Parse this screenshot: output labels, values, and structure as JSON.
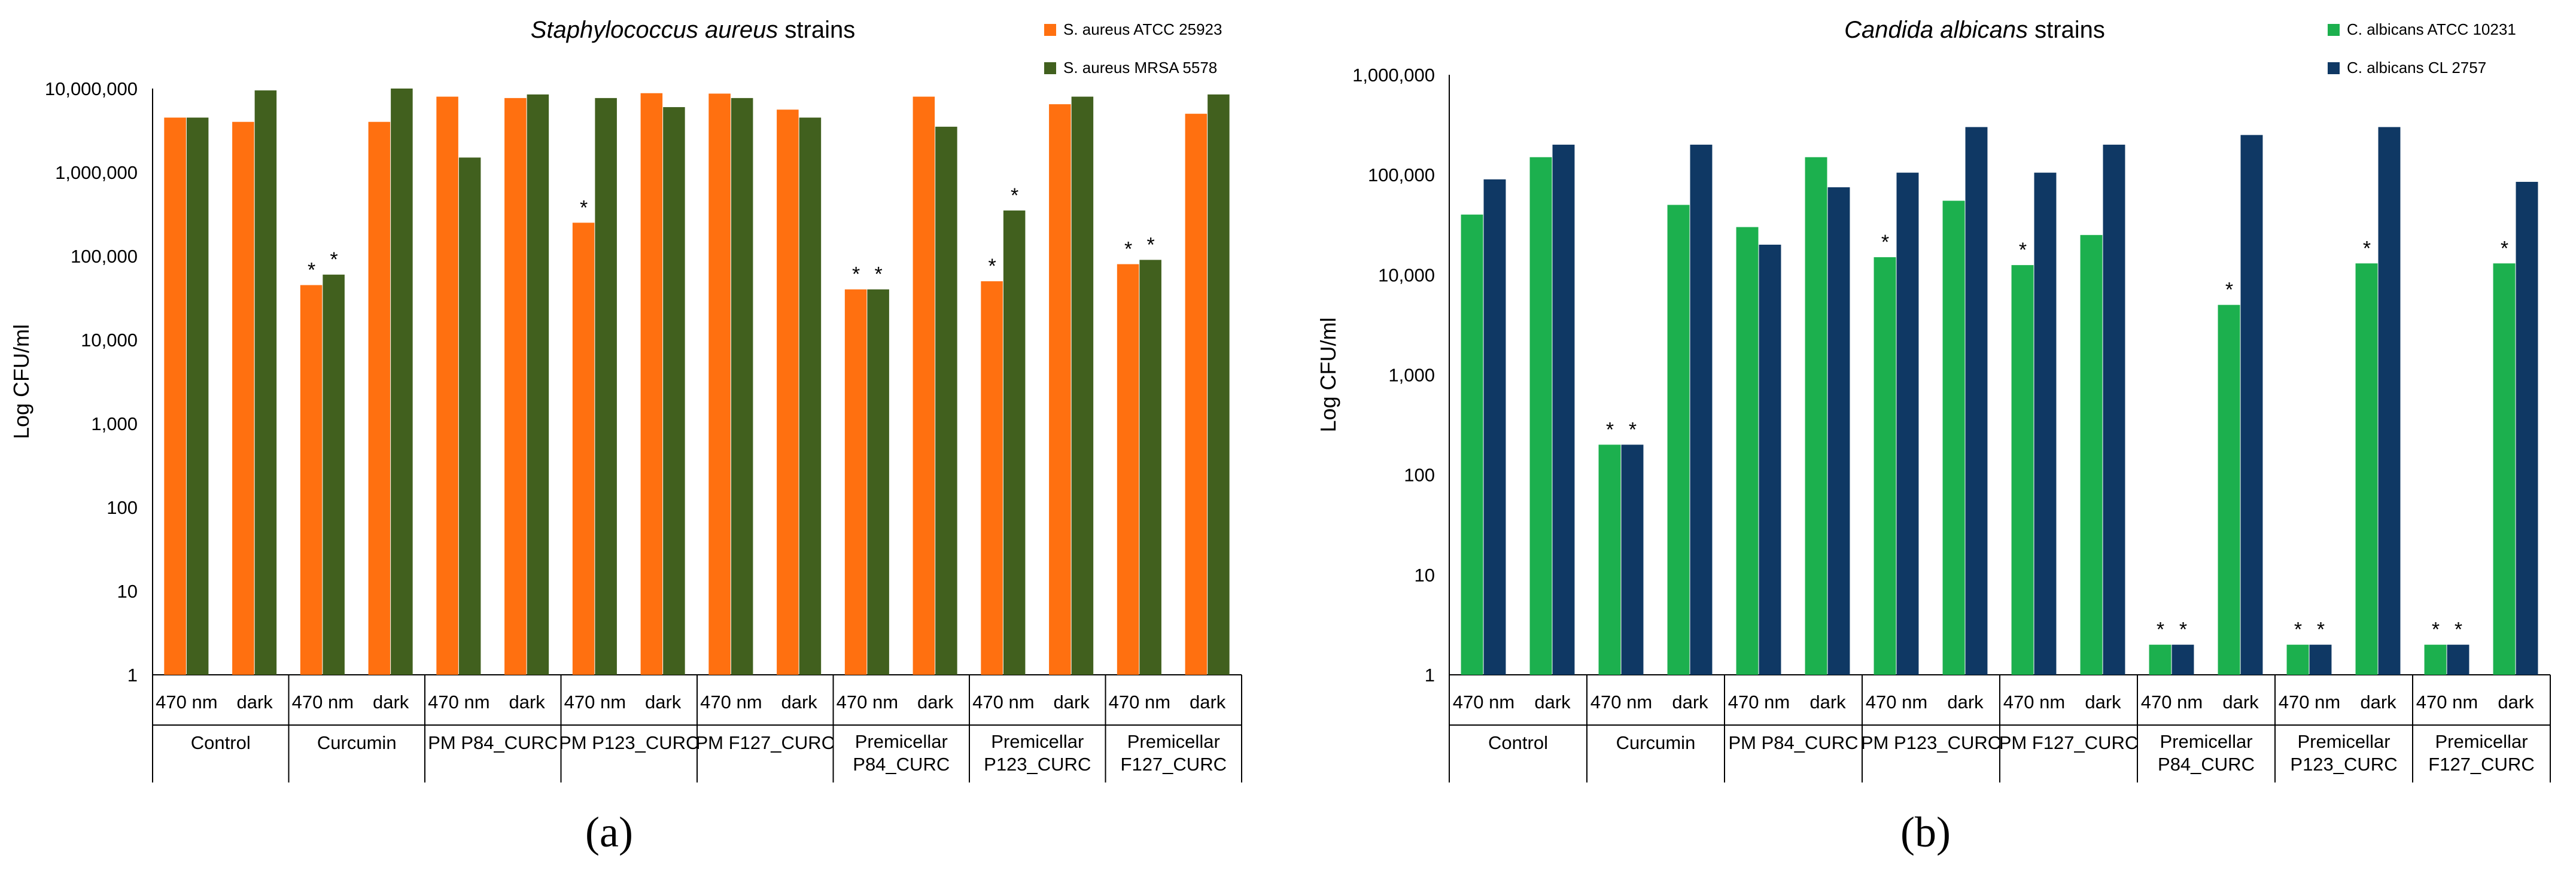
{
  "colors": {
    "a_s1": "#FF7010",
    "a_s2": "#41601E",
    "b_s1": "#1CB04E",
    "b_s2": "#0F3864"
  },
  "panel_labels": [
    "(a)",
    "(b)"
  ],
  "chart_data": [
    {
      "type": "bar",
      "scale": "log10",
      "title_italic": "Staphylococcus aureus",
      "title_rest": " strains",
      "ylabel": "Log CFU/ml",
      "xlabel": "",
      "ylim": [
        1,
        10000000
      ],
      "yticks": [
        1,
        10,
        100,
        1000,
        10000,
        100000,
        1000000,
        10000000
      ],
      "ytick_labels": [
        "1",
        "10",
        "100",
        "1,000",
        "10,000",
        "100,000",
        "1,000,000",
        "10,000,000"
      ],
      "groups": [
        [
          "Control"
        ],
        [
          "Curcumin"
        ],
        [
          "PM P84_CURC"
        ],
        [
          "PM P123_CURC"
        ],
        [
          "PM F127_CURC"
        ],
        [
          "Premicellar",
          "P84_CURC"
        ],
        [
          "Premicellar",
          "P123_CURC"
        ],
        [
          "Premicellar",
          "F127_CURC"
        ]
      ],
      "subcategories": [
        "470 nm",
        "dark"
      ],
      "series": [
        {
          "name": "S. aureus ATCC 25923",
          "values": [
            4500000,
            4000000,
            45000,
            4000000,
            8000000,
            7700000,
            250000,
            8800000,
            8700000,
            5600000,
            40000,
            8000000,
            50000,
            6500000,
            80000,
            5000000
          ],
          "significant": [
            false,
            false,
            true,
            false,
            false,
            false,
            true,
            false,
            false,
            false,
            true,
            false,
            true,
            false,
            true,
            false
          ]
        },
        {
          "name": "S. aureus MRSA 5578",
          "values": [
            4500000,
            9500000,
            60000,
            10000000,
            1500000,
            8500000,
            7700000,
            6000000,
            7700000,
            4500000,
            40000,
            3500000,
            350000,
            8000000,
            90000,
            8500000
          ],
          "significant": [
            false,
            false,
            true,
            false,
            false,
            false,
            false,
            false,
            false,
            false,
            true,
            false,
            true,
            false,
            true,
            false
          ]
        }
      ],
      "significance_mark": "*",
      "legend_position": "top-right"
    },
    {
      "type": "bar",
      "scale": "log10",
      "title_italic": "Candida albicans",
      "title_rest": " strains",
      "ylabel": "Log CFU/ml",
      "xlabel": "",
      "ylim": [
        1,
        1000000
      ],
      "yticks": [
        1,
        10,
        100,
        1000,
        10000,
        100000,
        1000000
      ],
      "ytick_labels": [
        "1",
        "10",
        "100",
        "1,000",
        "10,000",
        "100,000",
        "1,000,000"
      ],
      "groups": [
        [
          "Control"
        ],
        [
          "Curcumin"
        ],
        [
          "PM P84_CURC"
        ],
        [
          "PM P123_CURC"
        ],
        [
          "PM F127_CURC"
        ],
        [
          "Premicellar",
          "P84_CURC"
        ],
        [
          "Premicellar",
          "P123_CURC"
        ],
        [
          "Premicellar",
          "F127_CURC"
        ]
      ],
      "subcategories": [
        "470 nm",
        "dark"
      ],
      "series": [
        {
          "name": "C. albicans ATCC 10231",
          "values": [
            40000,
            150000,
            200,
            50000,
            30000,
            150000,
            15000,
            55000,
            12500,
            25000,
            2,
            5000,
            2,
            13000,
            2,
            13000
          ],
          "significant": [
            false,
            false,
            true,
            false,
            false,
            false,
            true,
            false,
            true,
            false,
            true,
            true,
            true,
            true,
            true,
            true
          ]
        },
        {
          "name": "C. albicans CL 2757",
          "values": [
            90000,
            200000,
            200,
            200000,
            20000,
            75000,
            105000,
            300000,
            105000,
            200000,
            2,
            250000,
            2,
            300000,
            2,
            85000
          ],
          "significant": [
            false,
            false,
            true,
            false,
            false,
            false,
            false,
            false,
            false,
            false,
            true,
            false,
            true,
            false,
            true,
            false
          ]
        }
      ],
      "significance_mark": "*",
      "legend_position": "top-right"
    }
  ]
}
